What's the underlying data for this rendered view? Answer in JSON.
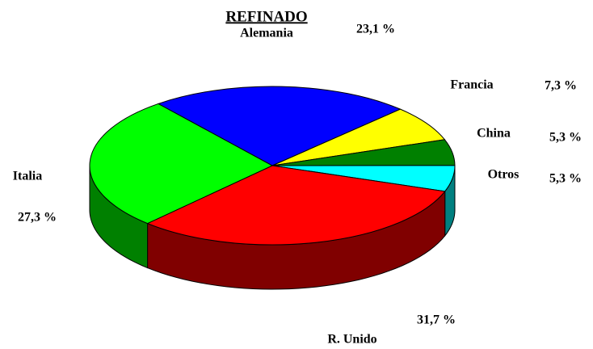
{
  "chart_data": {
    "type": "pie3d",
    "title": "REFINADO",
    "categories": [
      "Alemania",
      "Francia",
      "China",
      "Otros",
      "R. Unido",
      "Italia"
    ],
    "values": [
      23.1,
      7.3,
      5.3,
      5.3,
      31.7,
      27.3
    ],
    "value_labels": [
      "23,1 %",
      "7,3 %",
      "5,3 %",
      "5,3 %",
      "31,7 %",
      "27,3 %"
    ],
    "colors": [
      "#0000ff",
      "#ffff00",
      "#008000",
      "#00ffff",
      "#ff0000",
      "#00ff00"
    ]
  }
}
